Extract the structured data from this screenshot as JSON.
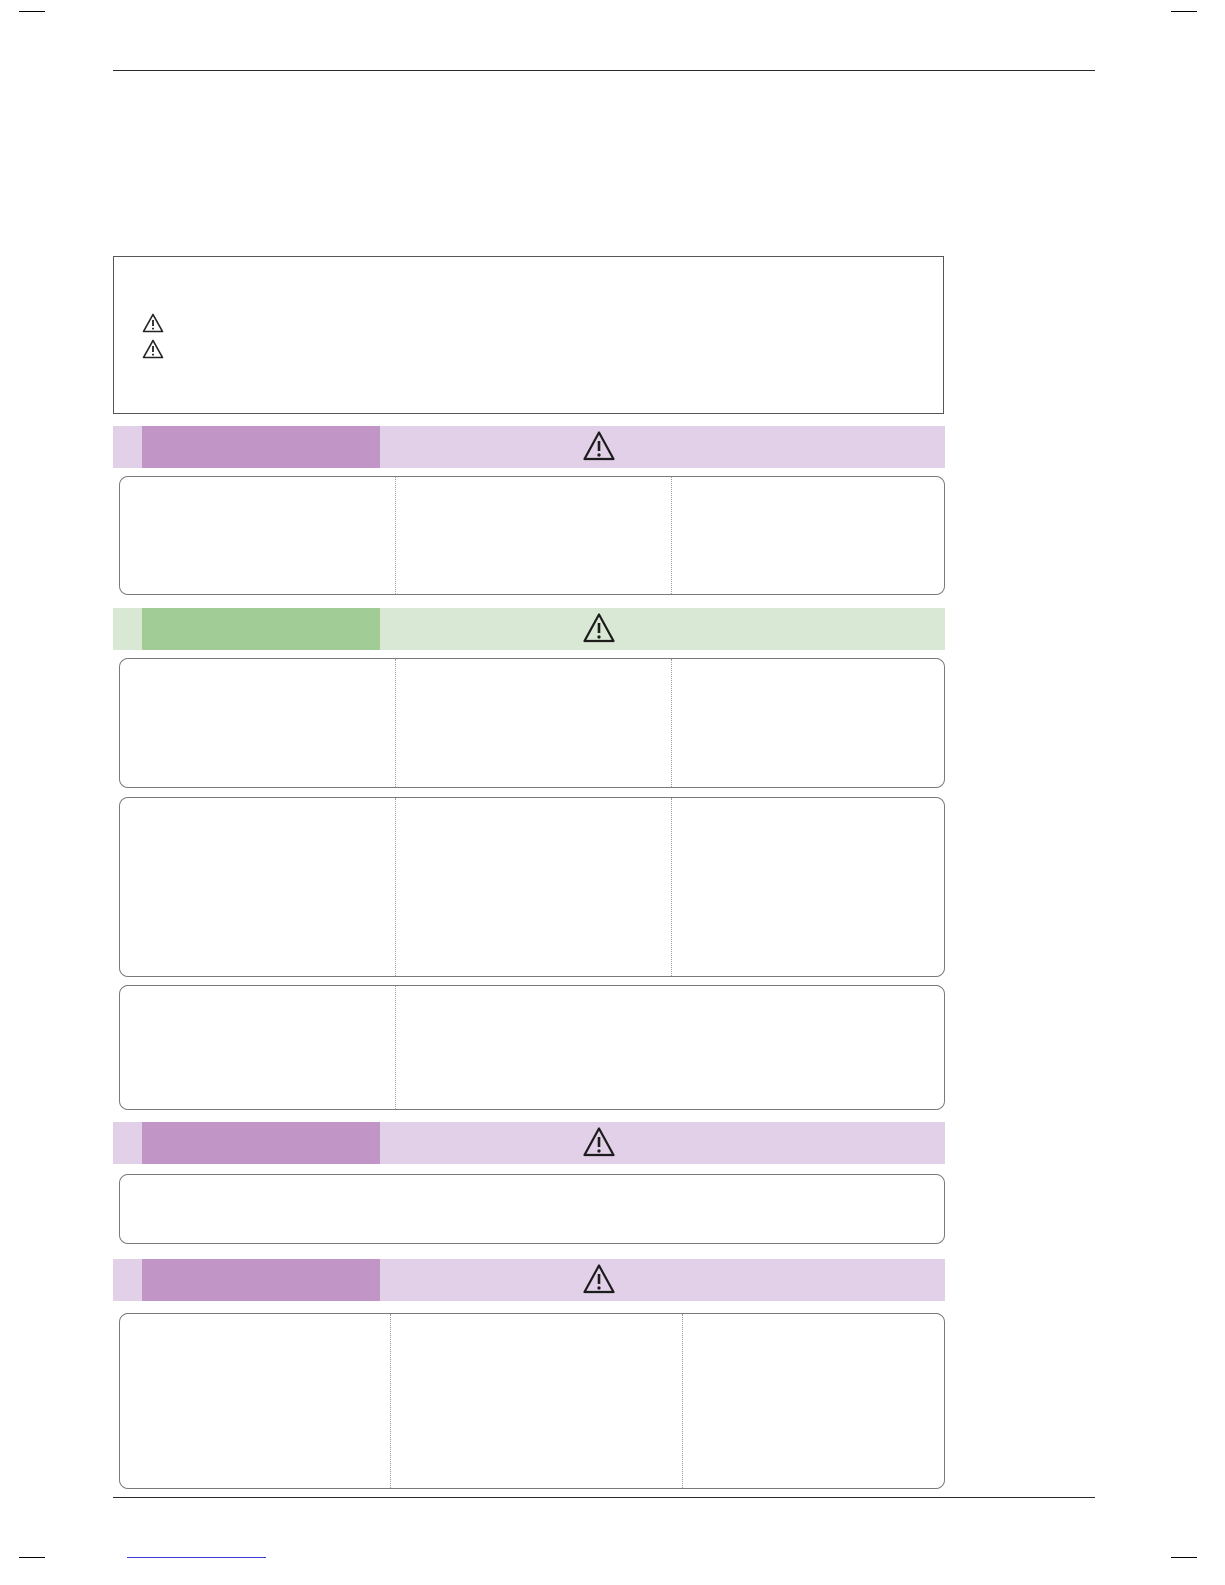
{
  "colors": {
    "purple_light": "#e1d0e7",
    "purple_dark": "#c195c5",
    "green_light": "#d9e8d4",
    "green_dark": "#a2cc95",
    "border": "#7a7a7a",
    "link": "#3a3ad8"
  },
  "icons": {
    "intro_warning": "warning-triangle-icon",
    "band_warning": "warning-triangle-icon"
  },
  "sections": [
    {
      "theme": "purple",
      "panels": 1
    },
    {
      "theme": "green",
      "panels": 3
    },
    {
      "theme": "purple",
      "panels": 1
    },
    {
      "theme": "purple",
      "panels": 1
    }
  ]
}
